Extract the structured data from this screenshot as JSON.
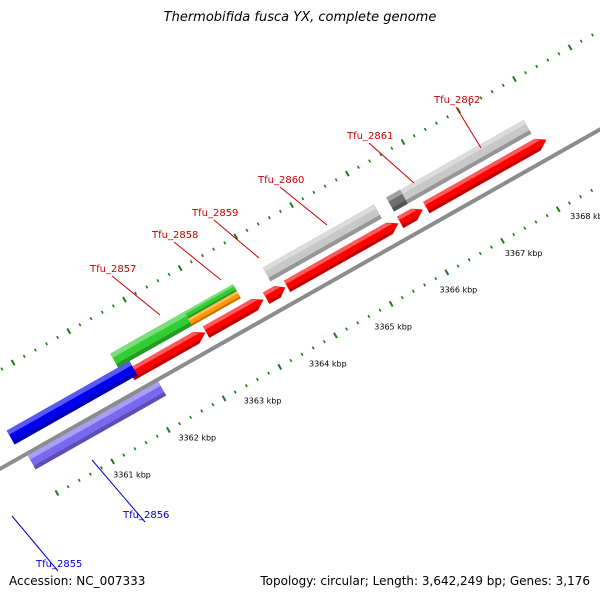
{
  "title": "Thermobifida fusca YX, complete genome",
  "footer": {
    "accession": "Accession: NC_007333",
    "summary": "Topology: circular; Length: 3,642,249 bp; Genes: 3,176"
  },
  "colors": {
    "backbone": "#8c8c8c",
    "tick_mark": "#1f7a1f",
    "label_red": "#cc0000",
    "label_blue": "#0000cc",
    "gene_red": "#ff0000",
    "gene_green": "#33cc33",
    "gene_orange": "#ff9900",
    "gene_grey": "#c8c8c8",
    "gene_dark_grey": "#6e6e6e",
    "gene_blue": "#0000ee",
    "gene_slate": "#7b68ee"
  },
  "kbp_labels": [
    "3361 kbp",
    "3362 kbp",
    "3363 kbp",
    "3364 kbp",
    "3365 kbp",
    "3366 kbp",
    "3367 kbp",
    "3368 kbp"
  ],
  "gene_labels": [
    {
      "text": "Tfu_2855",
      "color": "blue"
    },
    {
      "text": "Tfu_2856",
      "color": "blue"
    },
    {
      "text": "Tfu_2857",
      "color": "red"
    },
    {
      "text": "Tfu_2858",
      "color": "red"
    },
    {
      "text": "Tfu_2859",
      "color": "red"
    },
    {
      "text": "Tfu_2860",
      "color": "red"
    },
    {
      "text": "Tfu_2861",
      "color": "red"
    },
    {
      "text": "Tfu_2862",
      "color": "red"
    }
  ]
}
